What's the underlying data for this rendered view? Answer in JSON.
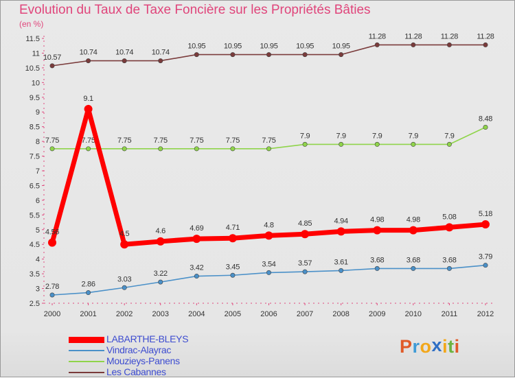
{
  "chart_data": {
    "type": "line",
    "title": "Evolution du Taux de Taxe Foncière sur les Propriétés Bâties",
    "ylabel": "(en %)",
    "xlabel": "",
    "x": [
      "2000",
      "2001",
      "2002",
      "2003",
      "2004",
      "2005",
      "2006",
      "2007",
      "2008",
      "2009",
      "2010",
      "2011",
      "2012"
    ],
    "ylim": [
      2.5,
      11.5
    ],
    "yticks": [
      "2.5",
      "3",
      "3.5",
      "4",
      "4.5",
      "5",
      "5.5",
      "6",
      "6.5",
      "7",
      "7.5",
      "8",
      "8.5",
      "9",
      "9.5",
      "10",
      "10.5",
      "11",
      "11.5"
    ],
    "series": [
      {
        "name": "LABARTHE-BLEYS",
        "color": "#ff0000",
        "values": [
          4.56,
          9.1,
          4.5,
          4.6,
          4.69,
          4.71,
          4.8,
          4.85,
          4.94,
          4.98,
          4.98,
          5.08,
          5.18
        ],
        "labels": [
          "4.56",
          "9.1",
          "4.5",
          "4.6",
          "4.69",
          "4.71",
          "4.8",
          "4.85",
          "4.94",
          "4.98",
          "4.98",
          "5.08",
          "5.18"
        ]
      },
      {
        "name": "Vindrac-Alayrac",
        "color": "#4a90c8",
        "values": [
          2.78,
          2.86,
          3.03,
          3.22,
          3.42,
          3.45,
          3.54,
          3.57,
          3.61,
          3.68,
          3.68,
          3.68,
          3.79
        ],
        "labels": [
          "2.78",
          "2.86",
          "3.03",
          "3.22",
          "3.42",
          "3.45",
          "3.54",
          "3.57",
          "3.61",
          "3.68",
          "3.68",
          "3.68",
          "3.79"
        ]
      },
      {
        "name": "Mouzieys-Panens",
        "color": "#8fd44a",
        "values": [
          7.75,
          7.75,
          7.75,
          7.75,
          7.75,
          7.75,
          7.75,
          7.9,
          7.9,
          7.9,
          7.9,
          7.9,
          8.48
        ],
        "labels": [
          "7.75",
          "7.75",
          "7.75",
          "7.75",
          "7.75",
          "7.75",
          "7.75",
          "7.9",
          "7.9",
          "7.9",
          "7.9",
          "7.9",
          "8.48"
        ]
      },
      {
        "name": "Les Cabannes",
        "color": "#7a3b3b",
        "values": [
          10.57,
          10.74,
          10.74,
          10.74,
          10.95,
          10.95,
          10.95,
          10.95,
          10.95,
          11.28,
          11.28,
          11.28,
          11.28
        ],
        "labels": [
          "10.57",
          "10.74",
          "10.74",
          "10.74",
          "10.95",
          "10.95",
          "10.95",
          "10.95",
          "10.95",
          "11.28",
          "11.28",
          "11.28",
          "11.28"
        ]
      }
    ],
    "legend_position": "bottom-left",
    "grid": false
  },
  "brand": {
    "letters": [
      "P",
      "r",
      "o",
      "x",
      "i",
      "t",
      "i"
    ],
    "colors": [
      "#e05a28",
      "#3f9bd6",
      "#f2a71b",
      "#2f6fc4",
      "#f2a71b",
      "#6cb33f",
      "#e05a28"
    ]
  }
}
